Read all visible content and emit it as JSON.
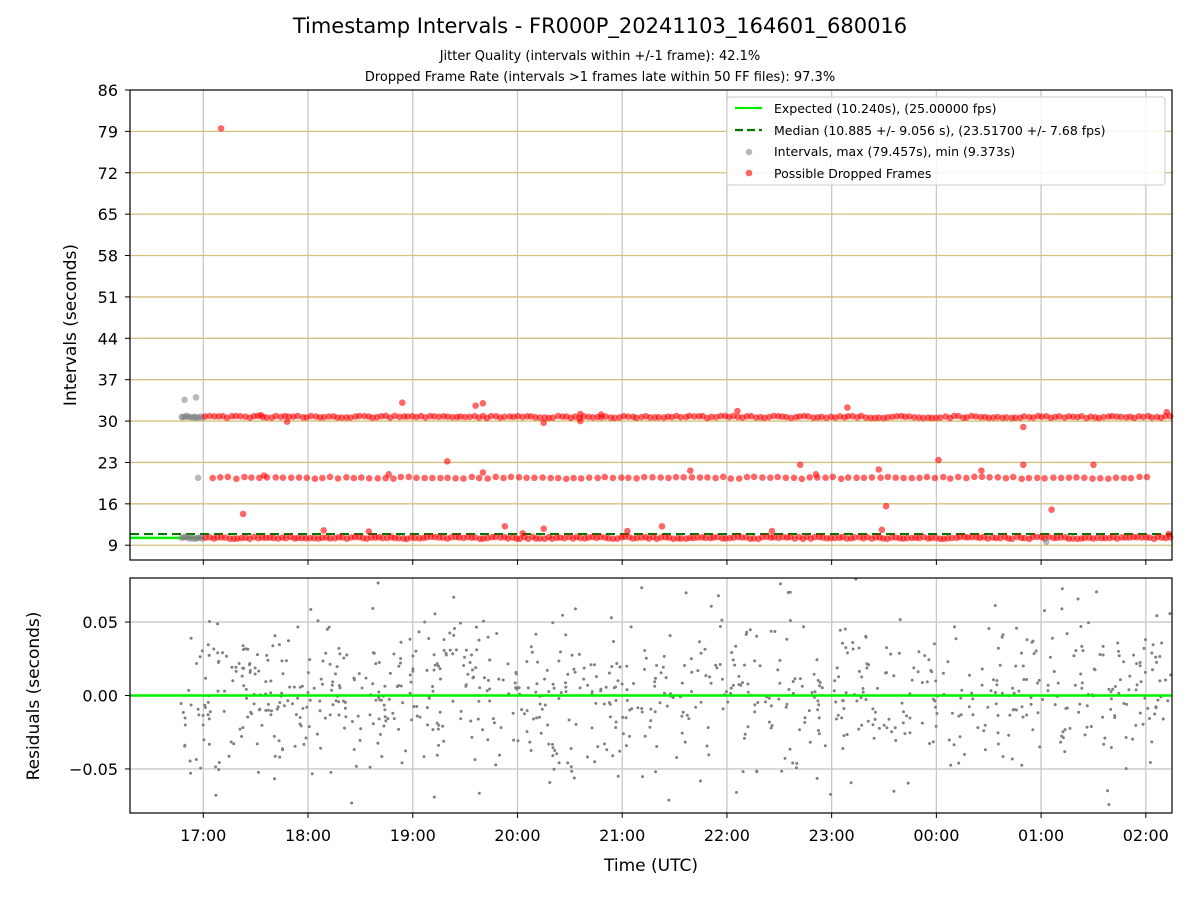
{
  "figure": {
    "title": "Timestamp Intervals - FR000P_20241103_164601_680016",
    "subtitle_jitter": "Jitter Quality (intervals within +/-1 frame): 42.1%",
    "subtitle_dropped": "Dropped Frame Rate (intervals >1 frames late within 50 FF files): 97.3%",
    "colors": {
      "expected": "#00ee00",
      "median": "#007700",
      "intervals": "#808080",
      "dropped": "#ff0000",
      "hgrid": "#d4c17f",
      "vgrid": "#c8c8c8"
    }
  },
  "chart_data": [
    {
      "type": "scatter",
      "title": "",
      "xlabel": "",
      "ylabel": "Intervals (seconds)",
      "x_unit": "hours since 00:00 UTC on 2024-11-03 (axis spans into 2024-11-04)",
      "xlim": [
        16.3,
        26.25
      ],
      "ylim": [
        6.5,
        86
      ],
      "yticks": [
        "9",
        "16",
        "23",
        "30",
        "37",
        "44",
        "51",
        "58",
        "65",
        "72",
        "79",
        "86"
      ],
      "grid": true,
      "legend_position": "top-right",
      "legend": [
        {
          "key": "expected",
          "label": "Expected (10.240s), (25.00000 fps)"
        },
        {
          "key": "median",
          "label": "Median (10.885 +/- 9.056 s), (23.51700 +/- 7.68 fps)"
        },
        {
          "key": "intervals",
          "label": "Intervals, max (79.457s), min (9.373s)"
        },
        {
          "key": "dropped",
          "label": "Possible Dropped Frames"
        }
      ],
      "reference_lines": {
        "expected": 10.24,
        "median": 10.885
      },
      "expected_segment_x": [
        16.3,
        17.0
      ],
      "point_bands": [
        {
          "series": "intervals",
          "y": 30.7,
          "x_from": 16.78,
          "x_to": 17.0,
          "count": 12
        },
        {
          "series": "intervals",
          "y": 10.24,
          "x_from": 16.78,
          "x_to": 17.0,
          "count": 12
        },
        {
          "series": "dropped",
          "y": 30.7,
          "x_from": 17.0,
          "x_to": 26.25,
          "count": 220
        },
        {
          "series": "dropped",
          "y": 20.4,
          "x_from": 17.05,
          "x_to": 26.05,
          "count": 120
        },
        {
          "series": "dropped",
          "y": 10.25,
          "x_from": 17.0,
          "x_to": 26.25,
          "count": 240
        }
      ],
      "outliers": [
        {
          "series": "intervals",
          "x": 16.82,
          "y": 33.6
        },
        {
          "series": "intervals",
          "x": 16.93,
          "y": 34.0
        },
        {
          "series": "intervals",
          "x": 16.95,
          "y": 20.4
        },
        {
          "series": "intervals",
          "x": 25.05,
          "y": 9.6
        },
        {
          "series": "dropped",
          "x": 17.17,
          "y": 79.5
        },
        {
          "series": "dropped",
          "x": 17.38,
          "y": 14.3
        },
        {
          "series": "dropped",
          "x": 17.55,
          "y": 31.0
        },
        {
          "series": "dropped",
          "x": 17.8,
          "y": 29.9
        },
        {
          "series": "dropped",
          "x": 17.58,
          "y": 20.8
        },
        {
          "series": "dropped",
          "x": 18.15,
          "y": 11.5
        },
        {
          "series": "dropped",
          "x": 18.58,
          "y": 11.3
        },
        {
          "series": "dropped",
          "x": 18.77,
          "y": 21.0
        },
        {
          "series": "dropped",
          "x": 18.9,
          "y": 33.1
        },
        {
          "series": "dropped",
          "x": 19.33,
          "y": 23.2
        },
        {
          "series": "dropped",
          "x": 19.6,
          "y": 32.6
        },
        {
          "series": "dropped",
          "x": 19.67,
          "y": 33.0
        },
        {
          "series": "dropped",
          "x": 19.67,
          "y": 21.3
        },
        {
          "series": "dropped",
          "x": 19.88,
          "y": 12.2
        },
        {
          "series": "dropped",
          "x": 20.05,
          "y": 11.0
        },
        {
          "series": "dropped",
          "x": 20.25,
          "y": 29.7
        },
        {
          "series": "dropped",
          "x": 20.25,
          "y": 11.8
        },
        {
          "series": "dropped",
          "x": 20.6,
          "y": 31.2
        },
        {
          "series": "dropped",
          "x": 20.6,
          "y": 30.0
        },
        {
          "series": "dropped",
          "x": 20.8,
          "y": 31.1
        },
        {
          "series": "dropped",
          "x": 21.05,
          "y": 11.4
        },
        {
          "series": "dropped",
          "x": 21.38,
          "y": 12.2
        },
        {
          "series": "dropped",
          "x": 21.65,
          "y": 21.6
        },
        {
          "series": "dropped",
          "x": 22.1,
          "y": 31.7
        },
        {
          "series": "dropped",
          "x": 22.43,
          "y": 11.4
        },
        {
          "series": "dropped",
          "x": 22.7,
          "y": 22.6
        },
        {
          "series": "dropped",
          "x": 22.85,
          "y": 21.0
        },
        {
          "series": "dropped",
          "x": 23.15,
          "y": 32.3
        },
        {
          "series": "dropped",
          "x": 23.45,
          "y": 21.8
        },
        {
          "series": "dropped",
          "x": 23.52,
          "y": 15.6
        },
        {
          "series": "dropped",
          "x": 23.48,
          "y": 11.6
        },
        {
          "series": "dropped",
          "x": 24.02,
          "y": 23.4
        },
        {
          "series": "dropped",
          "x": 24.43,
          "y": 21.6
        },
        {
          "series": "dropped",
          "x": 24.83,
          "y": 22.6
        },
        {
          "series": "dropped",
          "x": 24.83,
          "y": 29.0
        },
        {
          "series": "dropped",
          "x": 25.1,
          "y": 15.0
        },
        {
          "series": "dropped",
          "x": 25.5,
          "y": 22.6
        },
        {
          "series": "dropped",
          "x": 26.2,
          "y": 31.5
        },
        {
          "series": "dropped",
          "x": 26.22,
          "y": 10.9
        }
      ]
    },
    {
      "type": "scatter",
      "title": "",
      "xlabel": "Time (UTC)",
      "ylabel": "Residuals (seconds)",
      "x_unit": "hours since 00:00 UTC on 2024-11-03 (axis spans into 2024-11-04)",
      "xlim": [
        16.3,
        26.25
      ],
      "ylim": [
        -0.08,
        0.08
      ],
      "yticks": [
        "0.05",
        "0.00",
        "−0.05"
      ],
      "xticks": [
        {
          "x": 17,
          "label": "17:00"
        },
        {
          "x": 18,
          "label": "18:00"
        },
        {
          "x": 19,
          "label": "19:00"
        },
        {
          "x": 20,
          "label": "20:00"
        },
        {
          "x": 21,
          "label": "21:00"
        },
        {
          "x": 22,
          "label": "22:00"
        },
        {
          "x": 23,
          "label": "23:00"
        },
        {
          "x": 24,
          "label": "00:00"
        },
        {
          "x": 25,
          "label": "01:00"
        },
        {
          "x": 26,
          "label": "02:00"
        }
      ],
      "grid": true,
      "zero_line": 0.0,
      "residual_cloud": {
        "series": "intervals",
        "x_from": 16.78,
        "x_to": 26.25,
        "count": 900,
        "spread_std": 0.028
      }
    }
  ]
}
